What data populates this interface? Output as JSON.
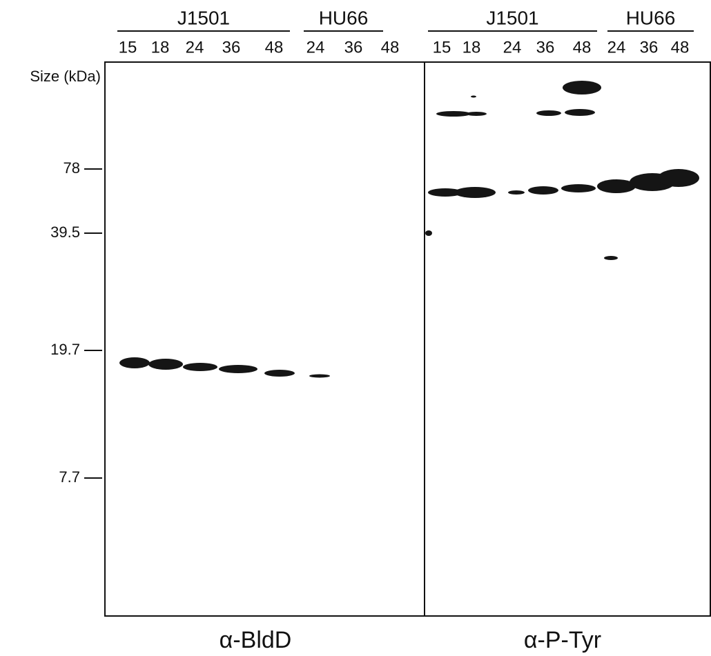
{
  "panels": [
    {
      "label": "α-BldD",
      "groups": [
        {
          "name": "J1501",
          "lanes": [
            "15",
            "18",
            "24",
            "36",
            "48"
          ]
        },
        {
          "name": "HU66",
          "lanes": [
            "24",
            "36",
            "48"
          ]
        }
      ]
    },
    {
      "label": "α-P-Tyr",
      "groups": [
        {
          "name": "J1501",
          "lanes": [
            "15",
            "18",
            "24",
            "36",
            "48"
          ]
        },
        {
          "name": "HU66",
          "lanes": [
            "24",
            "36",
            "48"
          ]
        }
      ]
    }
  ],
  "size_axis": {
    "title": "Size (kDa)",
    "markers": [
      "78",
      "39.5",
      "19.7",
      "7.7"
    ]
  }
}
